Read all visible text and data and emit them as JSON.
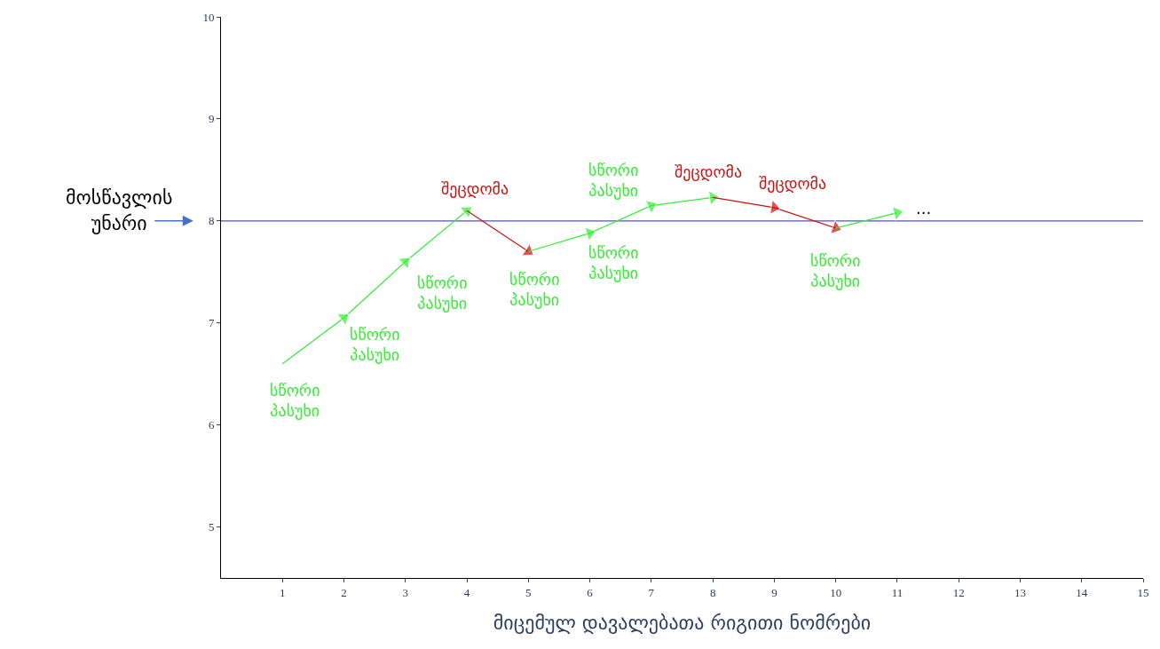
{
  "chart_data": {
    "type": "line",
    "xlabel": "მიცემულ დავალებათა რიგითი ნომრები",
    "ylabel": "მოსწავლის\nუნარი",
    "xlim": [
      0,
      15
    ],
    "xticks": [
      1,
      2,
      3,
      4,
      5,
      6,
      7,
      8,
      9,
      10,
      11,
      12,
      13,
      14,
      15
    ],
    "ylim": [
      4.5,
      10
    ],
    "yticks": [
      5,
      6,
      7,
      8,
      9,
      10
    ],
    "grid": false,
    "marker": "triangle",
    "line_style": "solid",
    "series": [
      {
        "color": "#33ee33",
        "x": [
          1,
          2,
          3,
          4
        ],
        "values": [
          6.6,
          7.05,
          7.6,
          8.1
        ]
      },
      {
        "color": "#cc1111",
        "x": [
          4,
          5
        ],
        "values": [
          8.1,
          7.7
        ]
      },
      {
        "color": "#33ee33",
        "x": [
          5,
          6,
          7,
          8
        ],
        "values": [
          7.7,
          7.88,
          8.15,
          8.23
        ]
      },
      {
        "color": "#cc1111",
        "x": [
          8,
          9,
          10
        ],
        "values": [
          8.23,
          8.13,
          7.93
        ]
      },
      {
        "color": "#33ee33",
        "x": [
          10,
          11
        ],
        "values": [
          7.93,
          8.08
        ]
      }
    ],
    "ref_lines": [
      {
        "axis": "y",
        "value": 8,
        "color": "#5555aa"
      }
    ],
    "annotations": [
      {
        "text": "სწორი\nპასუხი",
        "x": 1,
        "y": 6.6
      },
      {
        "text": "სწორი\nპასუხი",
        "x": 2,
        "y": 7.05
      },
      {
        "text": "სწორი\nპასუხი",
        "x": 3,
        "y": 7.6
      },
      {
        "text": "შეცდომა",
        "x": 4,
        "y": 8.1
      },
      {
        "text": "სწორი\nპასუხი",
        "x": 5,
        "y": 7.7
      },
      {
        "text": "სწორი\nპასუხი",
        "x": 7,
        "y": 8.15
      },
      {
        "text": "სწორი\nპასუხი",
        "x": 6,
        "y": 7.88
      },
      {
        "text": "შეცდომა",
        "x": 8,
        "y": 8.23
      },
      {
        "text": "შეცდომა",
        "x": 9,
        "y": 8.13
      },
      {
        "text": "სწორი\nპასუხი",
        "x": 10,
        "y": 7.93
      },
      {
        "text": "...",
        "x": 11,
        "y": 8.08
      }
    ]
  }
}
